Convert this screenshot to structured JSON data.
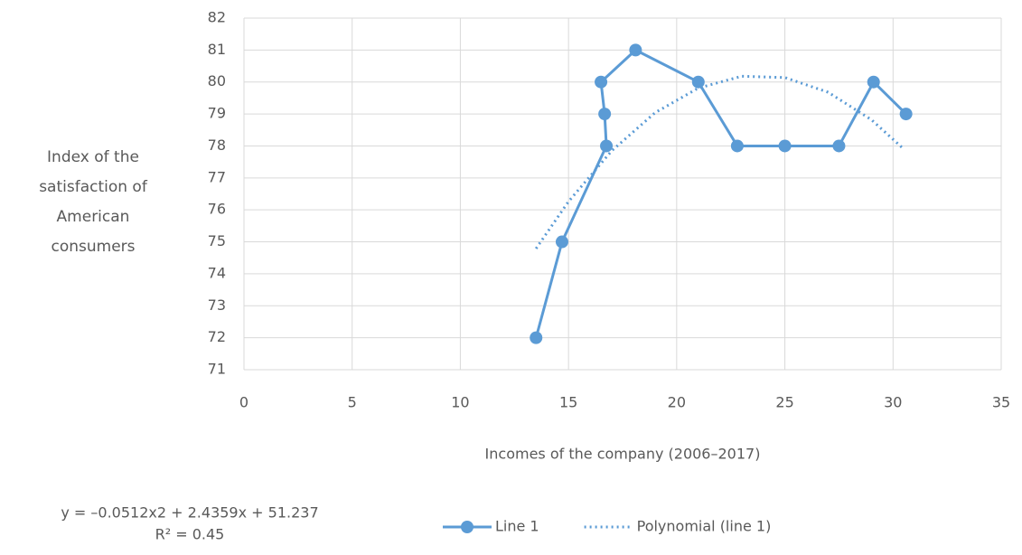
{
  "chart_data": {
    "type": "line",
    "x_label": "Incomes of the company (2006–2017)",
    "y_label": "Index of the satisfaction of American consumers",
    "xlim": [
      0,
      35
    ],
    "xticks": [
      0,
      5,
      10,
      15,
      20,
      25,
      30,
      35
    ],
    "ylim": [
      71,
      82
    ],
    "yticks": [
      71,
      72,
      73,
      74,
      75,
      76,
      77,
      78,
      79,
      80,
      81,
      82
    ],
    "grid": true,
    "legend": "bottom",
    "series": [
      {
        "name": "Line 1",
        "color": "#5b9bd5",
        "style": "solid",
        "markers": true,
        "x": [
          13.5,
          14.7,
          16.75,
          16.67,
          16.5,
          18.1,
          21,
          22.8,
          25,
          27.5,
          29.1,
          30.6
        ],
        "values": [
          72,
          75,
          78,
          79,
          80,
          81,
          80,
          78,
          78,
          78,
          80,
          79
        ]
      },
      {
        "name": "Polynomial (line 1)",
        "color": "#5b9bd5",
        "style": "dotted",
        "markers": false,
        "x": [
          13.5,
          15,
          17,
          19,
          21,
          23,
          25,
          27,
          29,
          30.5
        ],
        "values": [
          74.79,
          76.26,
          77.85,
          79.04,
          79.81,
          80.18,
          80.14,
          79.68,
          78.82,
          77.9
        ]
      }
    ],
    "annotations": [
      "y = –0.0512x2 + 2.4359x + 51.237",
      "R² = 0.45"
    ]
  }
}
